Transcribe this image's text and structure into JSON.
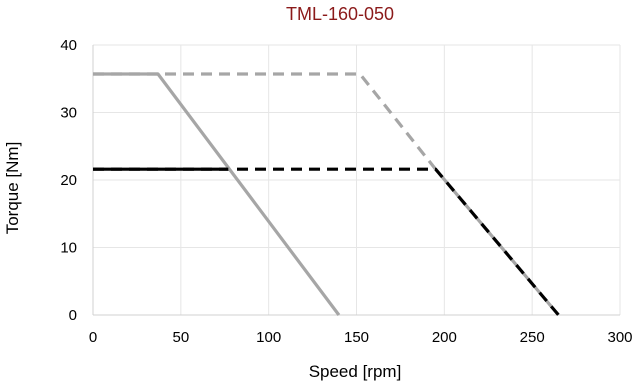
{
  "chart_data": {
    "type": "line",
    "title": "TML-160-050",
    "xlabel": "Speed [rpm]",
    "ylabel": "Torque [Nm]",
    "xlim": [
      0,
      300
    ],
    "ylim": [
      0,
      40
    ],
    "xticks": [
      0,
      50,
      100,
      150,
      200,
      250,
      300
    ],
    "yticks": [
      0,
      10,
      20,
      30,
      40
    ],
    "grid": true,
    "legend": "none",
    "series": [
      {
        "color": "#a6a6a6",
        "dash": "dashed",
        "x": [
          0,
          152,
          195,
          265
        ],
        "y": [
          35.7,
          35.7,
          21.6,
          0
        ]
      },
      {
        "color": "#000000",
        "dash": "dashed",
        "x": [
          0,
          195,
          265
        ],
        "y": [
          21.6,
          21.6,
          0
        ]
      },
      {
        "color": "#a6a6a6",
        "dash": "solid",
        "x": [
          0,
          37,
          140
        ],
        "y": [
          35.7,
          35.7,
          0
        ]
      },
      {
        "color": "#000000",
        "dash": "solid",
        "x": [
          0,
          77
        ],
        "y": [
          21.6,
          21.6
        ]
      }
    ]
  }
}
